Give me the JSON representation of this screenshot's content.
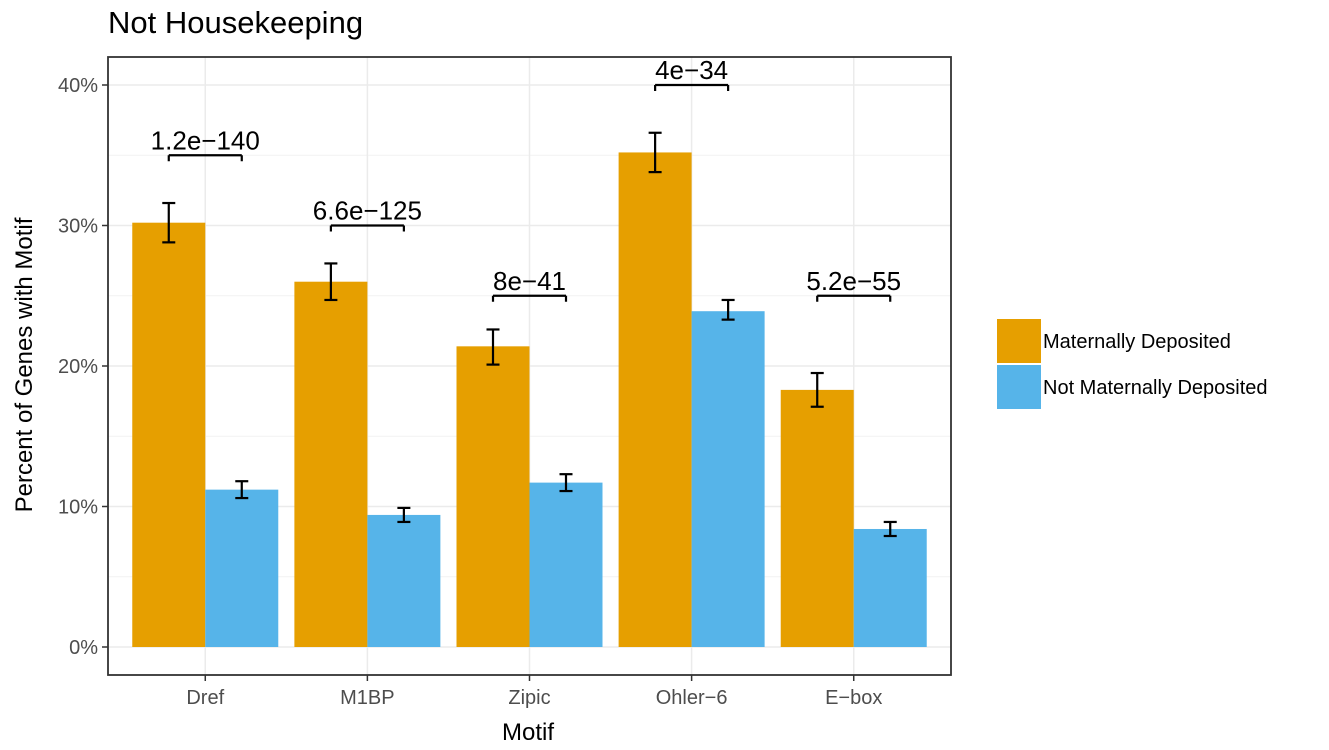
{
  "chart_data": {
    "type": "bar",
    "title": "Not Housekeeping",
    "xlabel": "Motif",
    "ylabel": "Percent of Genes with Motif",
    "ylim": [
      0,
      0.42
    ],
    "yticks": [
      0,
      0.1,
      0.2,
      0.3,
      0.4
    ],
    "ytick_labels": [
      "0%",
      "10%",
      "20%",
      "30%",
      "40%"
    ],
    "categories": [
      "Dref",
      "M1BP",
      "Zipic",
      "Ohler−6",
      "E−box"
    ],
    "series": [
      {
        "name": "Maternally Deposited",
        "color": "#E69F00",
        "values": [
          0.302,
          0.26,
          0.214,
          0.352,
          0.183
        ],
        "err_low": [
          0.288,
          0.247,
          0.201,
          0.338,
          0.171
        ],
        "err_high": [
          0.316,
          0.273,
          0.226,
          0.366,
          0.195
        ]
      },
      {
        "name": "Not Maternally Deposited",
        "color": "#56B4E9",
        "values": [
          0.112,
          0.094,
          0.117,
          0.239,
          0.084
        ],
        "err_low": [
          0.106,
          0.089,
          0.111,
          0.233,
          0.079
        ],
        "err_high": [
          0.118,
          0.099,
          0.123,
          0.247,
          0.089
        ]
      }
    ],
    "annotations": [
      {
        "category": "Dref",
        "text": "1.2e−140",
        "y": 0.35
      },
      {
        "category": "M1BP",
        "text": "6.6e−125",
        "y": 0.3
      },
      {
        "category": "Zipic",
        "text": "8e−41",
        "y": 0.25
      },
      {
        "category": "Ohler−6",
        "text": "4e−34",
        "y": 0.4
      },
      {
        "category": "E−box",
        "text": "5.2e−55",
        "y": 0.25
      }
    ],
    "grid": true,
    "legend_position": "right"
  }
}
